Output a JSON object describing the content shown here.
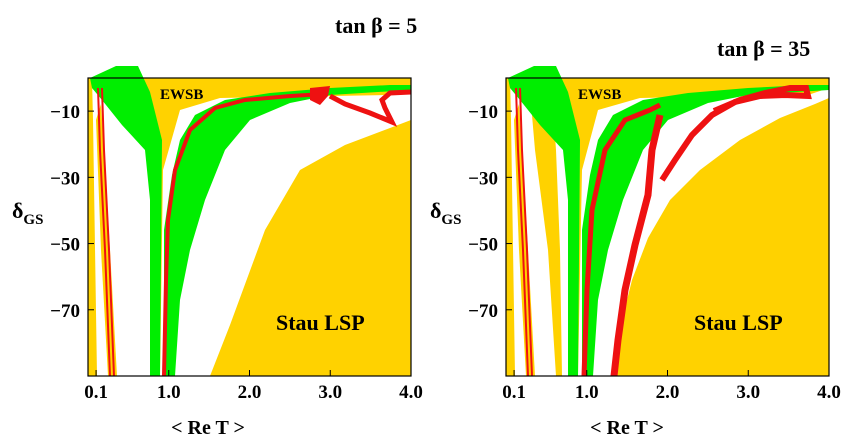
{
  "chart_data": [
    {
      "type": "region",
      "title": "tan β = 5",
      "title_parts": {
        "pre": "tan",
        "greek": "β",
        "post": " = 5"
      },
      "xlabel": "< Re T >",
      "ylabel_main": "δ",
      "ylabel_sub": "GS",
      "xlim": [
        0.0,
        4.0
      ],
      "ylim": [
        -90,
        0
      ],
      "xticks": [
        0.1,
        1.0,
        2.0,
        3.0,
        4.0
      ],
      "xtick_labels": [
        "0.1",
        "1.0",
        "2.0",
        "3.0",
        "4.0"
      ],
      "yticks": [
        -10,
        -30,
        -50,
        -70
      ],
      "ytick_labels": [
        "−10",
        "−30",
        "−50",
        "−70"
      ],
      "annotations": [
        "EWSB",
        "Stau LSP"
      ],
      "colors": {
        "excluded": "#FFD200",
        "green": "#00EE00",
        "red": "#EE1111",
        "allowed": "#FFFFFF"
      }
    },
    {
      "type": "region",
      "title": "tan β = 35",
      "title_parts": {
        "pre": "tan",
        "greek": "β",
        "post": " = 35"
      },
      "xlabel": "< Re T >",
      "ylabel_main": "δ",
      "ylabel_sub": "GS",
      "xlim": [
        0.0,
        4.0
      ],
      "ylim": [
        -90,
        0
      ],
      "xticks": [
        0.1,
        1.0,
        2.0,
        3.0,
        4.0
      ],
      "xtick_labels": [
        "0.1",
        "1.0",
        "2.0",
        "3.0",
        "4.0"
      ],
      "yticks": [
        -10,
        -30,
        -50,
        -70
      ],
      "ytick_labels": [
        "−10",
        "−30",
        "−50",
        "−70"
      ],
      "annotations": [
        "EWSB",
        "Stau LSP"
      ],
      "colors": {
        "excluded": "#FFD200",
        "green": "#00EE00",
        "red": "#EE1111",
        "allowed": "#FFFFFF"
      }
    }
  ]
}
